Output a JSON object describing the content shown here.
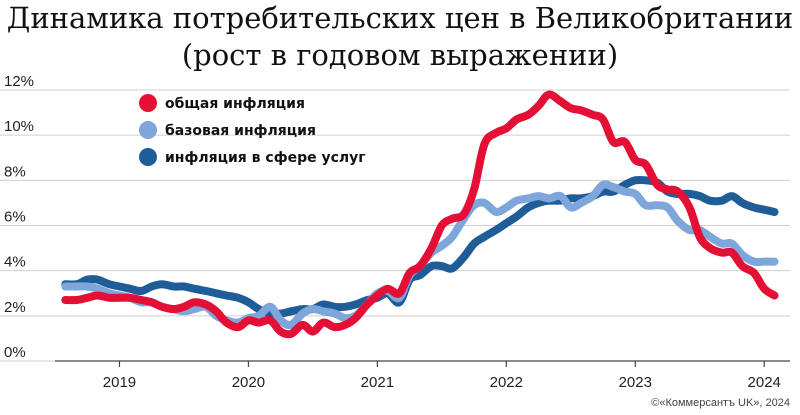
{
  "title_line1": "Динамика потребительских цен в Великобритании",
  "title_line2": "(рост в годовом выражении)",
  "credit": "©«Коммерсантъ UK», 2024",
  "chart_data": {
    "type": "line",
    "title": "Динамика потребительских цен в Великобритании (рост в годовом выражении)",
    "xlabel": "",
    "ylabel": "",
    "xlim": [
      2018.5,
      2024.2
    ],
    "ylim": [
      0,
      12
    ],
    "y_ticks": [
      "0%",
      "2%",
      "4%",
      "6%",
      "8%",
      "10%",
      "12%"
    ],
    "y_tick_values": [
      0,
      2,
      4,
      6,
      8,
      10,
      12
    ],
    "x_ticks": [
      "2019",
      "2020",
      "2021",
      "2022",
      "2023",
      "2024"
    ],
    "x_tick_values": [
      2019,
      2020,
      2021,
      2022,
      2023,
      2024
    ],
    "grid": "horizontal",
    "legend_position": "top-left",
    "series": [
      {
        "name": "общая инфляция",
        "color": "#e30f35",
        "x": [
          2018.58,
          2018.67,
          2018.75,
          2018.83,
          2018.92,
          2019.0,
          2019.08,
          2019.17,
          2019.25,
          2019.33,
          2019.42,
          2019.5,
          2019.58,
          2019.67,
          2019.75,
          2019.83,
          2019.92,
          2020.0,
          2020.08,
          2020.17,
          2020.25,
          2020.33,
          2020.42,
          2020.5,
          2020.58,
          2020.67,
          2020.75,
          2020.83,
          2020.92,
          2021.0,
          2021.08,
          2021.17,
          2021.25,
          2021.33,
          2021.42,
          2021.5,
          2021.58,
          2021.67,
          2021.75,
          2021.83,
          2021.92,
          2022.0,
          2022.08,
          2022.17,
          2022.25,
          2022.33,
          2022.42,
          2022.5,
          2022.58,
          2022.67,
          2022.75,
          2022.83,
          2022.92,
          2023.0,
          2023.08,
          2023.17,
          2023.25,
          2023.33,
          2023.42,
          2023.5,
          2023.58,
          2023.67,
          2023.75,
          2023.83,
          2023.92,
          2024.0,
          2024.08
        ],
        "values": [
          2.7,
          2.7,
          2.8,
          2.9,
          2.8,
          2.8,
          2.8,
          2.7,
          2.6,
          2.4,
          2.3,
          2.4,
          2.6,
          2.5,
          2.2,
          1.7,
          1.5,
          1.8,
          1.7,
          1.8,
          1.3,
          1.2,
          1.6,
          1.3,
          1.7,
          1.5,
          1.6,
          1.9,
          2.5,
          2.9,
          3.2,
          3.0,
          3.9,
          4.2,
          5.0,
          6.0,
          6.3,
          6.5,
          7.6,
          9.6,
          10.1,
          10.3,
          10.7,
          10.9,
          11.3,
          11.8,
          11.5,
          11.2,
          11.1,
          10.9,
          10.7,
          9.7,
          9.7,
          8.9,
          8.7,
          7.8,
          7.6,
          7.5,
          6.8,
          5.5,
          5.0,
          4.8,
          4.8,
          4.2,
          3.9,
          3.2,
          2.9
        ],
        "width": 8
      },
      {
        "name": "базовая инфляция",
        "color": "#7ea6da",
        "x": [
          2018.58,
          2018.67,
          2018.75,
          2018.83,
          2018.92,
          2019.0,
          2019.08,
          2019.17,
          2019.25,
          2019.33,
          2019.42,
          2019.5,
          2019.58,
          2019.67,
          2019.75,
          2019.83,
          2019.92,
          2020.0,
          2020.08,
          2020.17,
          2020.25,
          2020.33,
          2020.42,
          2020.5,
          2020.58,
          2020.67,
          2020.75,
          2020.83,
          2020.92,
          2021.0,
          2021.08,
          2021.17,
          2021.25,
          2021.33,
          2021.42,
          2021.5,
          2021.58,
          2021.67,
          2021.75,
          2021.83,
          2021.92,
          2022.0,
          2022.08,
          2022.17,
          2022.25,
          2022.33,
          2022.42,
          2022.5,
          2022.58,
          2022.67,
          2022.75,
          2022.83,
          2022.92,
          2023.0,
          2023.08,
          2023.17,
          2023.25,
          2023.33,
          2023.42,
          2023.5,
          2023.58,
          2023.67,
          2023.75,
          2023.83,
          2023.92,
          2024.0,
          2024.08
        ],
        "values": [
          3.3,
          3.3,
          3.3,
          3.2,
          3.0,
          2.9,
          2.8,
          2.6,
          2.6,
          2.4,
          2.3,
          2.2,
          2.3,
          2.4,
          2.0,
          1.8,
          1.7,
          1.9,
          2.0,
          2.4,
          1.8,
          1.6,
          2.1,
          2.3,
          2.2,
          2.1,
          1.9,
          2.0,
          2.5,
          3.0,
          3.1,
          2.8,
          3.8,
          4.2,
          4.8,
          5.1,
          5.5,
          6.3,
          6.9,
          7.0,
          6.6,
          6.8,
          7.1,
          7.2,
          7.3,
          7.2,
          7.3,
          6.8,
          7.0,
          7.3,
          7.8,
          7.7,
          7.5,
          7.4,
          6.9,
          6.9,
          6.8,
          6.2,
          5.8,
          5.8,
          5.5,
          5.2,
          5.2,
          4.7,
          4.4,
          4.4,
          4.4
        ],
        "width": 8
      },
      {
        "name": "инфляция в сфере услуг",
        "color": "#1f5d98",
        "x": [
          2018.58,
          2018.67,
          2018.75,
          2018.83,
          2018.92,
          2019.0,
          2019.08,
          2019.17,
          2019.25,
          2019.33,
          2019.42,
          2019.5,
          2019.58,
          2019.67,
          2019.75,
          2019.83,
          2019.92,
          2020.0,
          2020.08,
          2020.17,
          2020.25,
          2020.33,
          2020.42,
          2020.5,
          2020.58,
          2020.67,
          2020.75,
          2020.83,
          2020.92,
          2021.0,
          2021.08,
          2021.17,
          2021.25,
          2021.33,
          2021.42,
          2021.5,
          2021.58,
          2021.67,
          2021.75,
          2021.83,
          2021.92,
          2022.0,
          2022.08,
          2022.17,
          2022.25,
          2022.33,
          2022.42,
          2022.5,
          2022.58,
          2022.67,
          2022.75,
          2022.83,
          2022.92,
          2023.0,
          2023.08,
          2023.17,
          2023.25,
          2023.33,
          2023.42,
          2023.5,
          2023.58,
          2023.67,
          2023.75,
          2023.83,
          2023.92,
          2024.0,
          2024.08
        ],
        "values": [
          3.4,
          3.4,
          3.6,
          3.6,
          3.4,
          3.3,
          3.2,
          3.1,
          3.3,
          3.4,
          3.3,
          3.3,
          3.2,
          3.1,
          3.0,
          2.9,
          2.8,
          2.6,
          2.3,
          2.1,
          2.1,
          2.2,
          2.3,
          2.3,
          2.5,
          2.4,
          2.4,
          2.5,
          2.7,
          2.8,
          3.0,
          2.6,
          3.6,
          3.8,
          4.2,
          4.2,
          4.1,
          4.6,
          5.2,
          5.5,
          5.8,
          6.1,
          6.4,
          6.8,
          7.0,
          7.1,
          7.1,
          7.2,
          7.2,
          7.3,
          7.5,
          7.5,
          7.8,
          8.0,
          8.0,
          7.9,
          7.5,
          7.4,
          7.4,
          7.3,
          7.1,
          7.1,
          7.3,
          7.0,
          6.8,
          6.7,
          6.6
        ],
        "width": 8
      }
    ]
  }
}
